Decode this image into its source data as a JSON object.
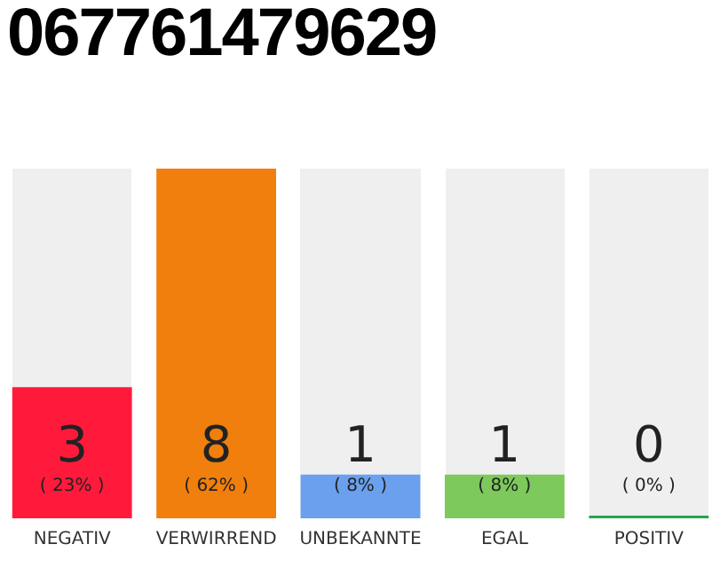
{
  "chart_data": {
    "type": "bar",
    "title": "067761479629",
    "categories": [
      "NEGATIV",
      "VERWIRREND",
      "UNBEKANNTE",
      "EGAL",
      "POSITIV"
    ],
    "values": [
      3,
      8,
      1,
      1,
      0
    ],
    "colors": [
      "#ff1a3c",
      "#f07f0d",
      "#6aa0ee",
      "#7dc95c",
      "#22a84a"
    ],
    "value_labels": [
      "3\n( 23% )",
      "8\n( 62% )",
      "1\n( 8% )",
      "1\n( 8% )",
      "0\n( 0% )"
    ],
    "grid": false,
    "legend": false
  }
}
